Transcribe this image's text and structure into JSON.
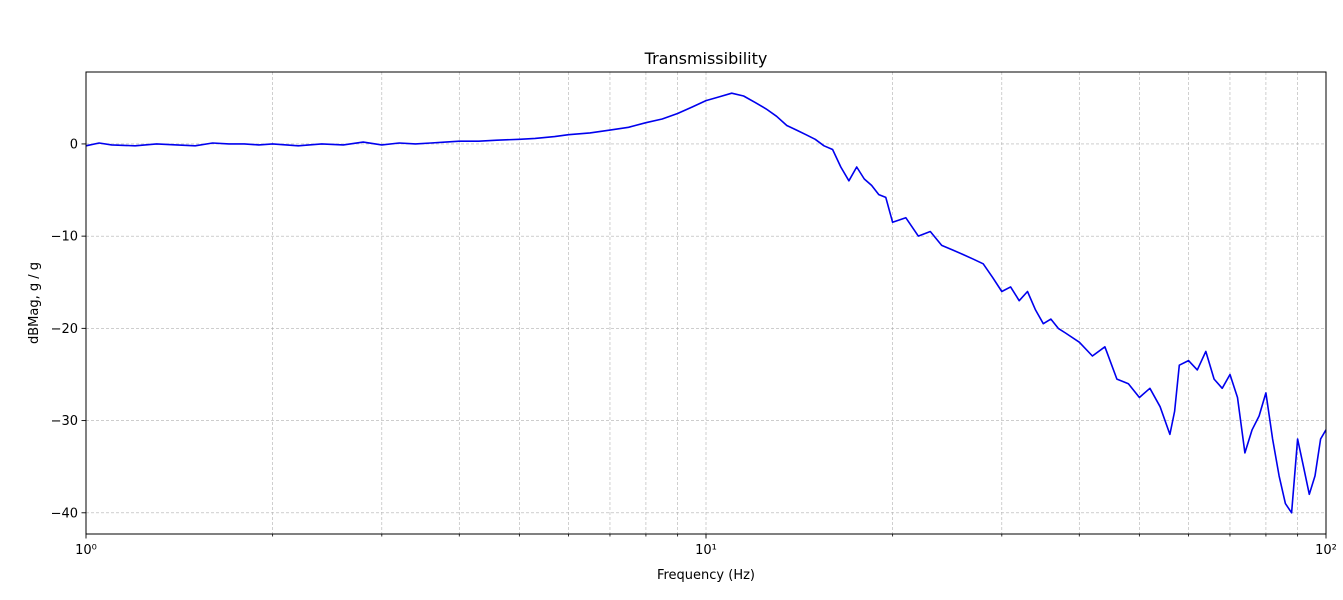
{
  "chart_data": {
    "type": "line",
    "title": "Transmissibility",
    "xlabel": "Frequency (Hz)",
    "ylabel": "dBMag, g / g",
    "xscale": "log",
    "xlim": [
      1,
      100
    ],
    "ylim": [
      -42.3,
      7.8
    ],
    "x_ticks": [
      {
        "value": 1,
        "label": "10⁰"
      },
      {
        "value": 10,
        "label": "10¹"
      },
      {
        "value": 100,
        "label": "10²"
      }
    ],
    "y_ticks": [
      {
        "value": 0,
        "label": "0"
      },
      {
        "value": -10,
        "label": "−10"
      },
      {
        "value": -20,
        "label": "−20"
      },
      {
        "value": -30,
        "label": "−30"
      },
      {
        "value": -40,
        "label": "−40"
      }
    ],
    "grid": true,
    "line_color": "#0000ee",
    "series": [
      {
        "color": "#0000ee",
        "x": [
          1.0,
          1.05,
          1.1,
          1.2,
          1.3,
          1.4,
          1.5,
          1.6,
          1.7,
          1.8,
          1.9,
          2.0,
          2.2,
          2.4,
          2.6,
          2.8,
          3.0,
          3.2,
          3.4,
          3.6,
          3.8,
          4.0,
          4.3,
          4.6,
          5.0,
          5.3,
          5.7,
          6.0,
          6.5,
          7.0,
          7.5,
          8.0,
          8.5,
          9.0,
          9.5,
          10.0,
          10.5,
          11.0,
          11.5,
          12.0,
          12.5,
          13.0,
          13.5,
          14.0,
          14.5,
          15.0,
          15.5,
          16.0,
          16.5,
          17.0,
          17.5,
          18.0,
          18.5,
          19.0,
          19.5,
          20.0,
          21.0,
          22.0,
          23.0,
          24.0,
          25.0,
          26.0,
          27.0,
          28.0,
          29.0,
          30.0,
          31.0,
          32.0,
          33.0,
          34.0,
          35.0,
          36.0,
          37.0,
          38.0,
          40.0,
          42.0,
          44.0,
          46.0,
          48.0,
          50.0,
          52.0,
          54.0,
          56.0,
          57.0,
          58.0,
          60.0,
          62.0,
          64.0,
          66.0,
          68.0,
          70.0,
          72.0,
          74.0,
          76.0,
          78.0,
          80.0,
          82.0,
          84.0,
          86.0,
          88.0,
          90.0,
          92.0,
          94.0,
          96.0,
          98.0,
          100.0
        ],
        "y": [
          -0.2,
          0.1,
          -0.1,
          -0.2,
          0.0,
          -0.1,
          -0.2,
          0.1,
          0.0,
          0.0,
          -0.1,
          0.0,
          -0.2,
          0.0,
          -0.1,
          0.2,
          -0.1,
          0.1,
          0.0,
          0.1,
          0.2,
          0.3,
          0.3,
          0.4,
          0.5,
          0.6,
          0.8,
          1.0,
          1.2,
          1.5,
          1.8,
          2.3,
          2.7,
          3.3,
          4.0,
          4.7,
          5.1,
          5.5,
          5.2,
          4.5,
          3.8,
          3.0,
          2.0,
          1.5,
          1.0,
          0.5,
          -0.2,
          -0.6,
          -2.5,
          -4.0,
          -2.5,
          -3.8,
          -4.5,
          -5.5,
          -5.8,
          -8.5,
          -8.0,
          -10.0,
          -9.5,
          -11.0,
          -11.5,
          -12.0,
          -12.5,
          -13.0,
          -14.5,
          -16.0,
          -15.5,
          -17.0,
          -16.0,
          -18.0,
          -19.5,
          -19.0,
          -20.0,
          -20.5,
          -21.5,
          -23.0,
          -22.0,
          -25.5,
          -26.0,
          -27.5,
          -26.5,
          -28.5,
          -31.5,
          -29.0,
          -24.0,
          -23.5,
          -24.5,
          -22.5,
          -25.5,
          -26.5,
          -25.0,
          -27.5,
          -33.5,
          -31.0,
          -29.5,
          -27.0,
          -32.0,
          -36.0,
          -39.0,
          -40.0,
          -32.0,
          -35.0,
          -38.0,
          -36.0,
          -32.0,
          -31.0
        ]
      }
    ]
  }
}
